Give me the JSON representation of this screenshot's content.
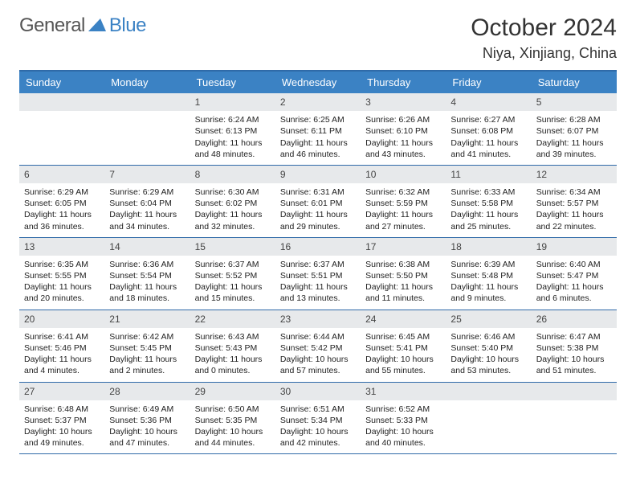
{
  "logo": {
    "text1": "General",
    "text2": "Blue",
    "triangle_color": "#3b82c4"
  },
  "title": "October 2024",
  "location": "Niya, Xinjiang, China",
  "colors": {
    "header_bg": "#3b82c4",
    "border": "#2f6aa8",
    "daynum_bg": "#e7e9eb",
    "text": "#222222",
    "white": "#ffffff"
  },
  "day_names": [
    "Sunday",
    "Monday",
    "Tuesday",
    "Wednesday",
    "Thursday",
    "Friday",
    "Saturday"
  ],
  "weeks": [
    [
      null,
      null,
      {
        "n": "1",
        "sr": "Sunrise: 6:24 AM",
        "ss": "Sunset: 6:13 PM",
        "dl": "Daylight: 11 hours and 48 minutes."
      },
      {
        "n": "2",
        "sr": "Sunrise: 6:25 AM",
        "ss": "Sunset: 6:11 PM",
        "dl": "Daylight: 11 hours and 46 minutes."
      },
      {
        "n": "3",
        "sr": "Sunrise: 6:26 AM",
        "ss": "Sunset: 6:10 PM",
        "dl": "Daylight: 11 hours and 43 minutes."
      },
      {
        "n": "4",
        "sr": "Sunrise: 6:27 AM",
        "ss": "Sunset: 6:08 PM",
        "dl": "Daylight: 11 hours and 41 minutes."
      },
      {
        "n": "5",
        "sr": "Sunrise: 6:28 AM",
        "ss": "Sunset: 6:07 PM",
        "dl": "Daylight: 11 hours and 39 minutes."
      }
    ],
    [
      {
        "n": "6",
        "sr": "Sunrise: 6:29 AM",
        "ss": "Sunset: 6:05 PM",
        "dl": "Daylight: 11 hours and 36 minutes."
      },
      {
        "n": "7",
        "sr": "Sunrise: 6:29 AM",
        "ss": "Sunset: 6:04 PM",
        "dl": "Daylight: 11 hours and 34 minutes."
      },
      {
        "n": "8",
        "sr": "Sunrise: 6:30 AM",
        "ss": "Sunset: 6:02 PM",
        "dl": "Daylight: 11 hours and 32 minutes."
      },
      {
        "n": "9",
        "sr": "Sunrise: 6:31 AM",
        "ss": "Sunset: 6:01 PM",
        "dl": "Daylight: 11 hours and 29 minutes."
      },
      {
        "n": "10",
        "sr": "Sunrise: 6:32 AM",
        "ss": "Sunset: 5:59 PM",
        "dl": "Daylight: 11 hours and 27 minutes."
      },
      {
        "n": "11",
        "sr": "Sunrise: 6:33 AM",
        "ss": "Sunset: 5:58 PM",
        "dl": "Daylight: 11 hours and 25 minutes."
      },
      {
        "n": "12",
        "sr": "Sunrise: 6:34 AM",
        "ss": "Sunset: 5:57 PM",
        "dl": "Daylight: 11 hours and 22 minutes."
      }
    ],
    [
      {
        "n": "13",
        "sr": "Sunrise: 6:35 AM",
        "ss": "Sunset: 5:55 PM",
        "dl": "Daylight: 11 hours and 20 minutes."
      },
      {
        "n": "14",
        "sr": "Sunrise: 6:36 AM",
        "ss": "Sunset: 5:54 PM",
        "dl": "Daylight: 11 hours and 18 minutes."
      },
      {
        "n": "15",
        "sr": "Sunrise: 6:37 AM",
        "ss": "Sunset: 5:52 PM",
        "dl": "Daylight: 11 hours and 15 minutes."
      },
      {
        "n": "16",
        "sr": "Sunrise: 6:37 AM",
        "ss": "Sunset: 5:51 PM",
        "dl": "Daylight: 11 hours and 13 minutes."
      },
      {
        "n": "17",
        "sr": "Sunrise: 6:38 AM",
        "ss": "Sunset: 5:50 PM",
        "dl": "Daylight: 11 hours and 11 minutes."
      },
      {
        "n": "18",
        "sr": "Sunrise: 6:39 AM",
        "ss": "Sunset: 5:48 PM",
        "dl": "Daylight: 11 hours and 9 minutes."
      },
      {
        "n": "19",
        "sr": "Sunrise: 6:40 AM",
        "ss": "Sunset: 5:47 PM",
        "dl": "Daylight: 11 hours and 6 minutes."
      }
    ],
    [
      {
        "n": "20",
        "sr": "Sunrise: 6:41 AM",
        "ss": "Sunset: 5:46 PM",
        "dl": "Daylight: 11 hours and 4 minutes."
      },
      {
        "n": "21",
        "sr": "Sunrise: 6:42 AM",
        "ss": "Sunset: 5:45 PM",
        "dl": "Daylight: 11 hours and 2 minutes."
      },
      {
        "n": "22",
        "sr": "Sunrise: 6:43 AM",
        "ss": "Sunset: 5:43 PM",
        "dl": "Daylight: 11 hours and 0 minutes."
      },
      {
        "n": "23",
        "sr": "Sunrise: 6:44 AM",
        "ss": "Sunset: 5:42 PM",
        "dl": "Daylight: 10 hours and 57 minutes."
      },
      {
        "n": "24",
        "sr": "Sunrise: 6:45 AM",
        "ss": "Sunset: 5:41 PM",
        "dl": "Daylight: 10 hours and 55 minutes."
      },
      {
        "n": "25",
        "sr": "Sunrise: 6:46 AM",
        "ss": "Sunset: 5:40 PM",
        "dl": "Daylight: 10 hours and 53 minutes."
      },
      {
        "n": "26",
        "sr": "Sunrise: 6:47 AM",
        "ss": "Sunset: 5:38 PM",
        "dl": "Daylight: 10 hours and 51 minutes."
      }
    ],
    [
      {
        "n": "27",
        "sr": "Sunrise: 6:48 AM",
        "ss": "Sunset: 5:37 PM",
        "dl": "Daylight: 10 hours and 49 minutes."
      },
      {
        "n": "28",
        "sr": "Sunrise: 6:49 AM",
        "ss": "Sunset: 5:36 PM",
        "dl": "Daylight: 10 hours and 47 minutes."
      },
      {
        "n": "29",
        "sr": "Sunrise: 6:50 AM",
        "ss": "Sunset: 5:35 PM",
        "dl": "Daylight: 10 hours and 44 minutes."
      },
      {
        "n": "30",
        "sr": "Sunrise: 6:51 AM",
        "ss": "Sunset: 5:34 PM",
        "dl": "Daylight: 10 hours and 42 minutes."
      },
      {
        "n": "31",
        "sr": "Sunrise: 6:52 AM",
        "ss": "Sunset: 5:33 PM",
        "dl": "Daylight: 10 hours and 40 minutes."
      },
      null,
      null
    ]
  ]
}
